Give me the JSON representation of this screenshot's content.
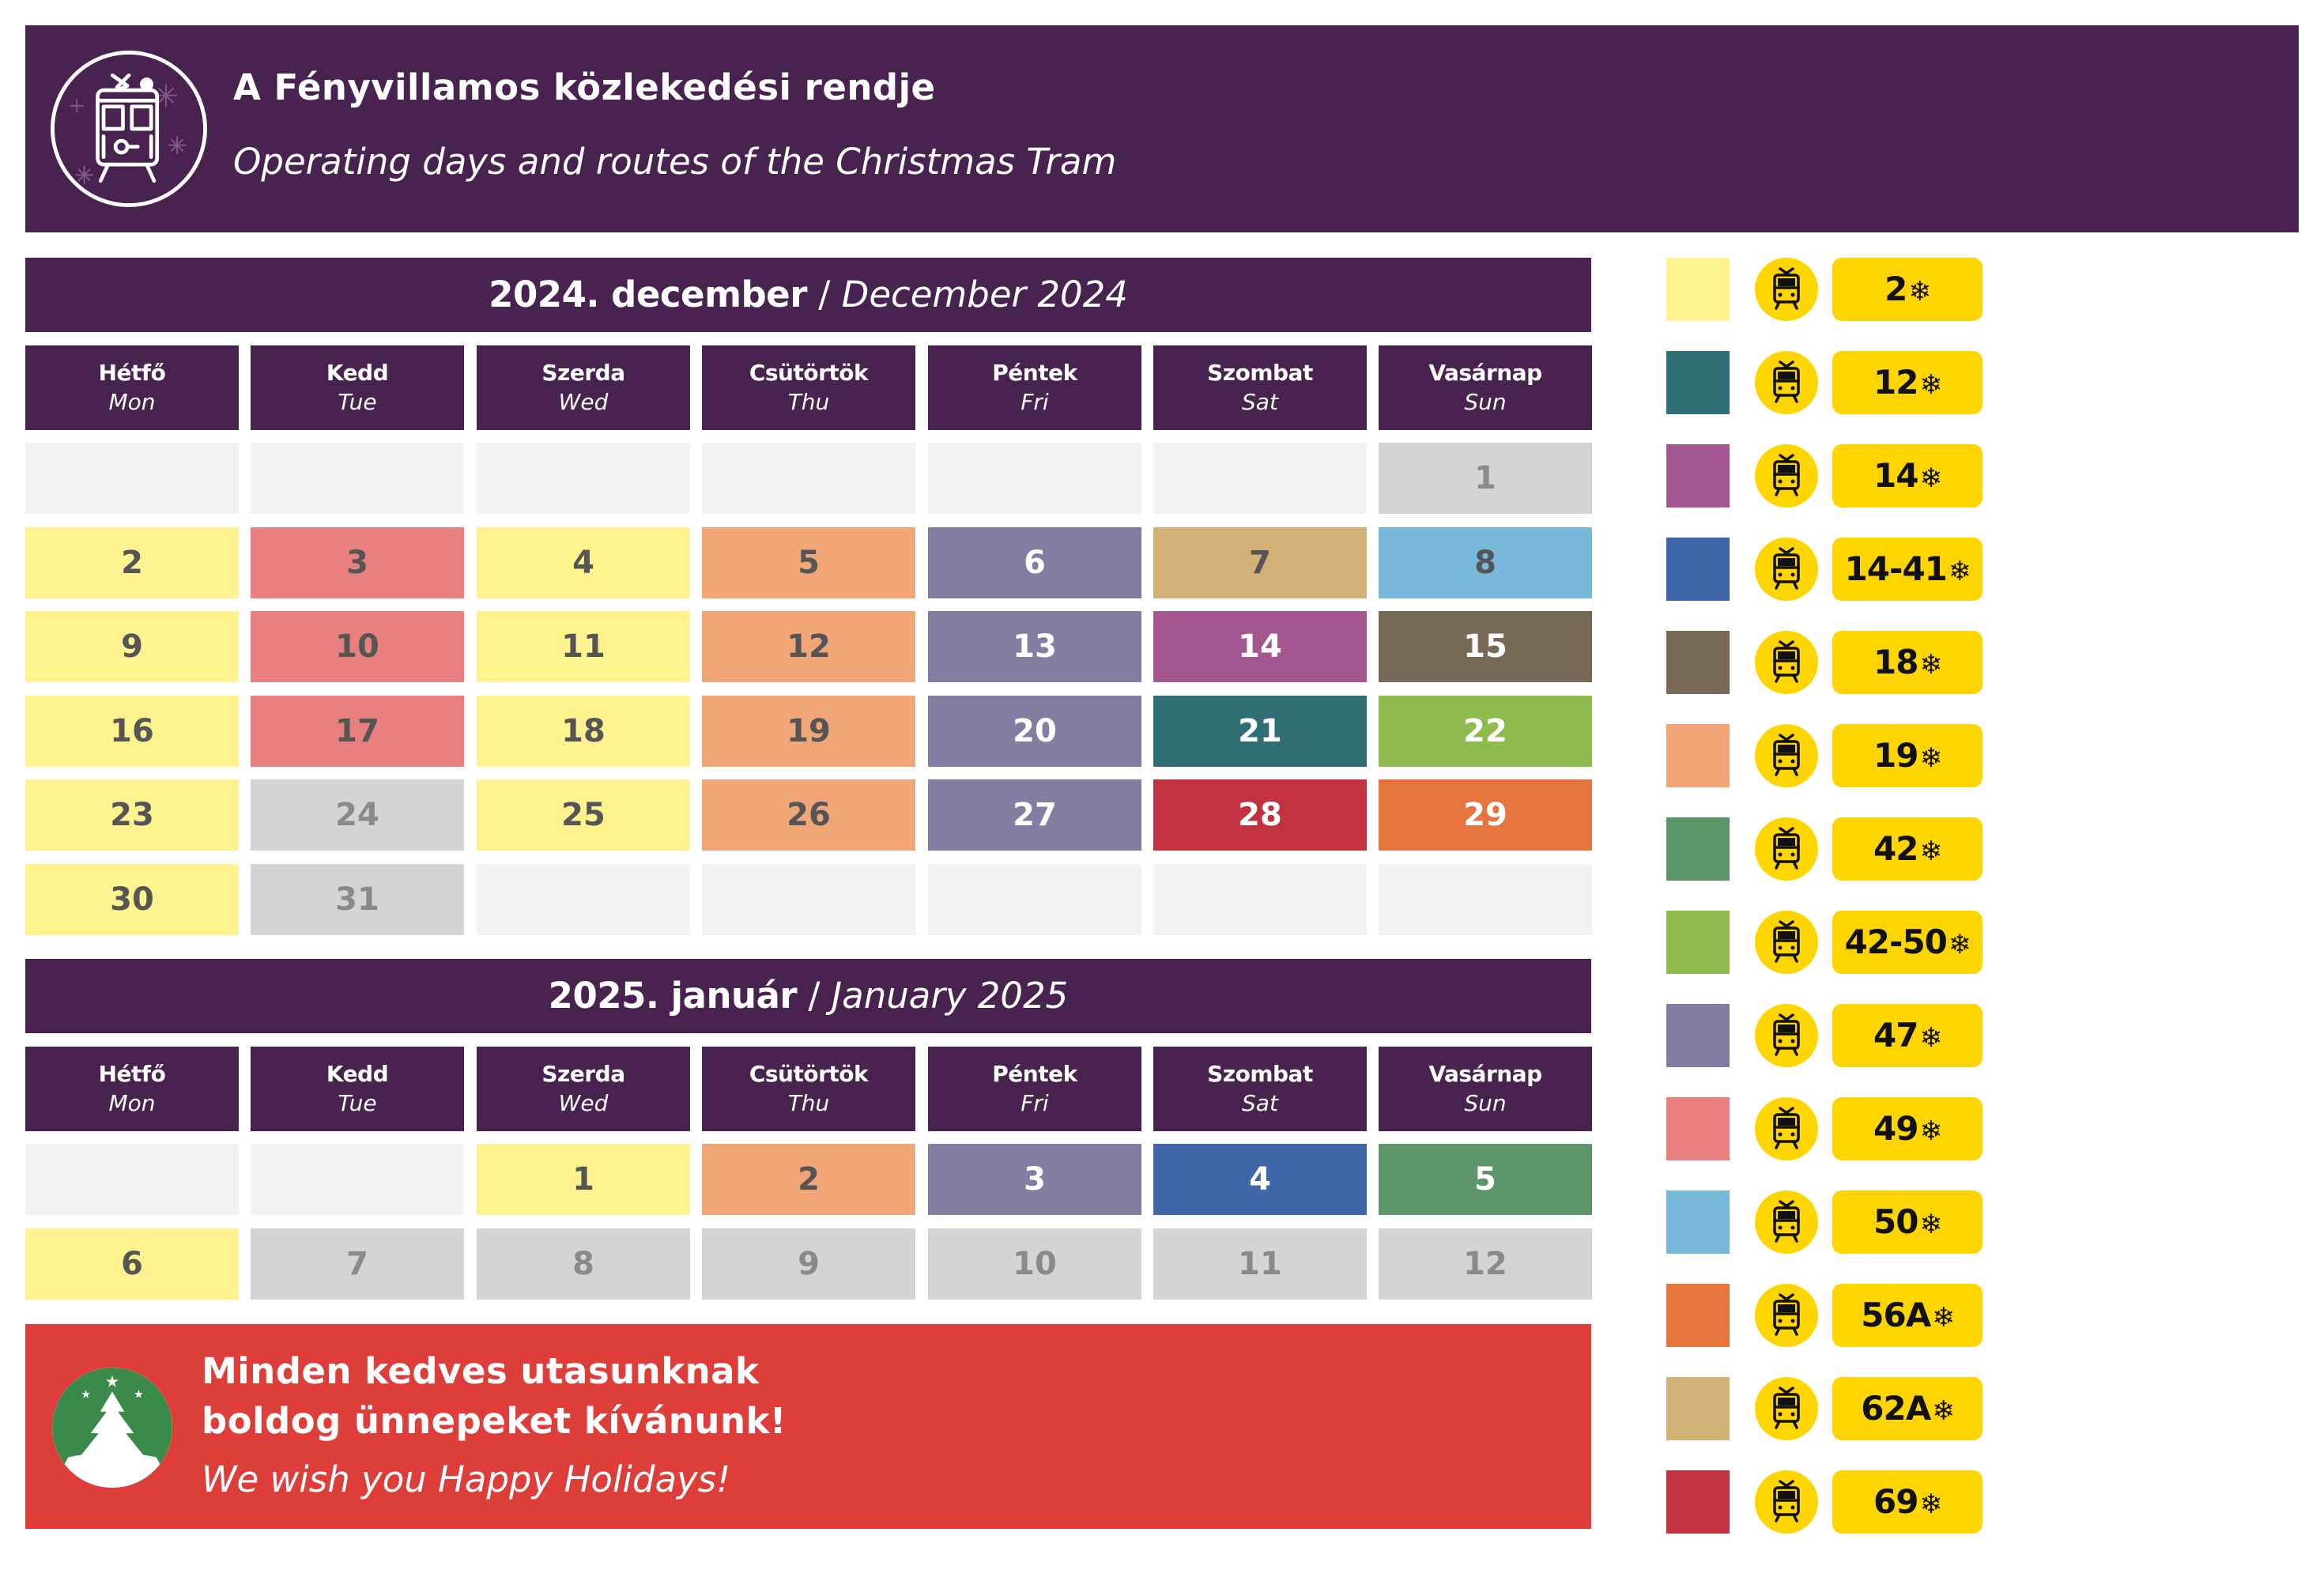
{
  "header": {
    "title": "A Fényvillamos közlekedési rendje",
    "subtitle": "Operating days and routes of the Christmas Tram",
    "logo_icon": "christmas-tram-logo"
  },
  "colors": {
    "purple": "#48234f",
    "red": "#de3e3a",
    "yellow_badge": "#ffd500",
    "empty": "#f2f2f2",
    "nonoperating": "#d3d4d3"
  },
  "weekdays": [
    {
      "hu": "Hétfő",
      "en": "Mon"
    },
    {
      "hu": "Kedd",
      "en": "Tue"
    },
    {
      "hu": "Szerda",
      "en": "Wed"
    },
    {
      "hu": "Csütörtök",
      "en": "Thu"
    },
    {
      "hu": "Péntek",
      "en": "Fri"
    },
    {
      "hu": "Szombat",
      "en": "Sat"
    },
    {
      "hu": "Vasárnap",
      "en": "Sun"
    }
  ],
  "months": [
    {
      "title_hu": "2024. december",
      "title_en": "December 2024",
      "weeks": [
        [
          null,
          null,
          null,
          null,
          null,
          null,
          {
            "day": "1",
            "route": null
          }
        ],
        [
          {
            "day": "2",
            "route": "2"
          },
          {
            "day": "3",
            "route": "49"
          },
          {
            "day": "4",
            "route": "2"
          },
          {
            "day": "5",
            "route": "19"
          },
          {
            "day": "6",
            "route": "47"
          },
          {
            "day": "7",
            "route": "62A"
          },
          {
            "day": "8",
            "route": "50"
          }
        ],
        [
          {
            "day": "9",
            "route": "2"
          },
          {
            "day": "10",
            "route": "49"
          },
          {
            "day": "11",
            "route": "2"
          },
          {
            "day": "12",
            "route": "19"
          },
          {
            "day": "13",
            "route": "47"
          },
          {
            "day": "14",
            "route": "14"
          },
          {
            "day": "15",
            "route": "18"
          }
        ],
        [
          {
            "day": "16",
            "route": "2"
          },
          {
            "day": "17",
            "route": "49"
          },
          {
            "day": "18",
            "route": "2"
          },
          {
            "day": "19",
            "route": "19"
          },
          {
            "day": "20",
            "route": "47"
          },
          {
            "day": "21",
            "route": "12"
          },
          {
            "day": "22",
            "route": "42-50"
          }
        ],
        [
          {
            "day": "23",
            "route": "2"
          },
          {
            "day": "24",
            "route": null
          },
          {
            "day": "25",
            "route": "2"
          },
          {
            "day": "26",
            "route": "19"
          },
          {
            "day": "27",
            "route": "47"
          },
          {
            "day": "28",
            "route": "69"
          },
          {
            "day": "29",
            "route": "56A"
          }
        ],
        [
          {
            "day": "30",
            "route": "2"
          },
          {
            "day": "31",
            "route": null
          },
          null,
          null,
          null,
          null,
          null
        ]
      ]
    },
    {
      "title_hu": "2025. január",
      "title_en": "January 2025",
      "weeks": [
        [
          null,
          null,
          {
            "day": "1",
            "route": "2"
          },
          {
            "day": "2",
            "route": "19"
          },
          {
            "day": "3",
            "route": "47"
          },
          {
            "day": "4",
            "route": "14-41"
          },
          {
            "day": "5",
            "route": "42"
          }
        ],
        [
          {
            "day": "6",
            "route": "2"
          },
          {
            "day": "7",
            "route": null
          },
          {
            "day": "8",
            "route": null
          },
          {
            "day": "9",
            "route": null
          },
          {
            "day": "10",
            "route": null
          },
          {
            "day": "11",
            "route": null
          },
          {
            "day": "12",
            "route": null
          }
        ]
      ]
    }
  ],
  "routes": [
    {
      "name": "2",
      "color": "#fff38f"
    },
    {
      "name": "12",
      "color": "#2e6e74"
    },
    {
      "name": "14",
      "color": "#a4568f"
    },
    {
      "name": "14-41",
      "color": "#3f66a9"
    },
    {
      "name": "18",
      "color": "#786956"
    },
    {
      "name": "19",
      "color": "#f1a677"
    },
    {
      "name": "42",
      "color": "#5d956b"
    },
    {
      "name": "42-50",
      "color": "#8fba4e"
    },
    {
      "name": "47",
      "color": "#827ea2"
    },
    {
      "name": "49",
      "color": "#e98080"
    },
    {
      "name": "50",
      "color": "#78b8da"
    },
    {
      "name": "56A",
      "color": "#e6743f"
    },
    {
      "name": "62A",
      "color": "#d0b074"
    },
    {
      "name": "69",
      "color": "#c23140"
    }
  ],
  "greeting": {
    "line1": "Minden kedves utasunknak",
    "line2": "boldog ünnepeket kívánunk!",
    "line3": "We wish you Happy Holidays!",
    "icon": "christmas-tree-icon"
  }
}
